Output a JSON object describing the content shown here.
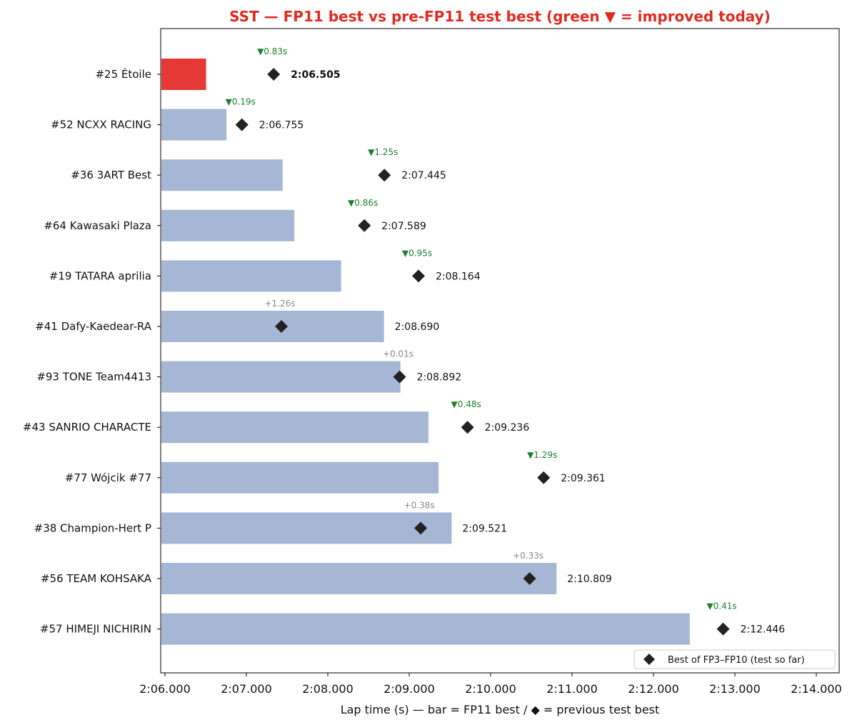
{
  "chart_data": {
    "type": "bar",
    "orientation": "horizontal",
    "title": "SST — FP11 best vs pre-FP11 test best (green ▼ = improved today)",
    "xlabel": "Lap time (s) — bar = FP11 best / ◆ = previous test best",
    "xlim": [
      126.0,
      134.0
    ],
    "xticks": [
      126,
      127,
      128,
      129,
      130,
      131,
      132,
      133,
      134
    ],
    "xtick_labels": [
      "2:06.000",
      "2:07.000",
      "2:08.000",
      "2:09.000",
      "2:10.000",
      "2:11.000",
      "2:12.000",
      "2:13.000",
      "2:14.000"
    ],
    "legend": {
      "label": "Best of FP3–FP10 (test so far)",
      "position": "lower-right"
    },
    "colors": {
      "highlight": "#e53935",
      "bar": "#a5b7d5",
      "improved": "#1b7f2f",
      "worse": "#888888",
      "marker": "#222222",
      "title": "#e02b20"
    },
    "rows": [
      {
        "label": "#25 Étoile",
        "fp11": 126.505,
        "fp11_label": "2:06.505",
        "prev": 127.335,
        "delta": "▼0.83s",
        "improved": true,
        "highlight": true
      },
      {
        "label": "#52 NCXX RACING",
        "fp11": 126.755,
        "fp11_label": "2:06.755",
        "prev": 126.945,
        "delta": "▼0.19s",
        "improved": true,
        "highlight": false
      },
      {
        "label": "#36 3ART Best",
        "fp11": 127.445,
        "fp11_label": "2:07.445",
        "prev": 128.695,
        "delta": "▼1.25s",
        "improved": true,
        "highlight": false
      },
      {
        "label": "#64 Kawasaki Plaza",
        "fp11": 127.589,
        "fp11_label": "2:07.589",
        "prev": 128.449,
        "delta": "▼0.86s",
        "improved": true,
        "highlight": false
      },
      {
        "label": "#19 TATARA aprilia",
        "fp11": 128.164,
        "fp11_label": "2:08.164",
        "prev": 129.114,
        "delta": "▼0.95s",
        "improved": true,
        "highlight": false
      },
      {
        "label": "#41 Dafy-Kaedear-RA",
        "fp11": 128.69,
        "fp11_label": "2:08.690",
        "prev": 127.43,
        "delta": "+1.26s",
        "improved": false,
        "highlight": false
      },
      {
        "label": "#93 TONE Team4413",
        "fp11": 128.892,
        "fp11_label": "2:08.892",
        "prev": 128.882,
        "delta": "+0.01s",
        "improved": false,
        "highlight": false
      },
      {
        "label": "#43 SANRIO CHARACTE",
        "fp11": 129.236,
        "fp11_label": "2:09.236",
        "prev": 129.716,
        "delta": "▼0.48s",
        "improved": true,
        "highlight": false
      },
      {
        "label": "#77 Wójcik #77",
        "fp11": 129.361,
        "fp11_label": "2:09.361",
        "prev": 130.651,
        "delta": "▼1.29s",
        "improved": true,
        "highlight": false
      },
      {
        "label": "#38 Champion-Hert P",
        "fp11": 129.521,
        "fp11_label": "2:09.521",
        "prev": 129.141,
        "delta": "+0.38s",
        "improved": false,
        "highlight": false
      },
      {
        "label": "#56 TEAM KOHSAKA",
        "fp11": 130.809,
        "fp11_label": "2:10.809",
        "prev": 130.479,
        "delta": "+0.33s",
        "improved": false,
        "highlight": false
      },
      {
        "label": "#57 HIMEJI NICHIRIN",
        "fp11": 132.446,
        "fp11_label": "2:12.446",
        "prev": 132.856,
        "delta": "▼0.41s",
        "improved": true,
        "highlight": false
      }
    ]
  }
}
